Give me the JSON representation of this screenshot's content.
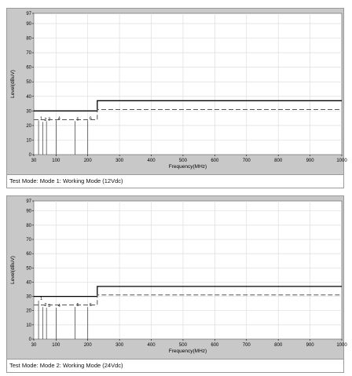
{
  "chart_data": [
    {
      "type": "line",
      "xlabel": "Frequency(MHz)",
      "ylabel": "Level(dBuV)",
      "xlim": [
        30,
        1000
      ],
      "ylim": [
        0,
        97
      ],
      "x_ticks": [
        30,
        100,
        200,
        300,
        400,
        500,
        600,
        700,
        800,
        900,
        1000
      ],
      "x_tick_labels": [
        "30",
        "100",
        "200",
        "300",
        "400",
        "500",
        "600",
        "700",
        "800",
        "900",
        "1000"
      ],
      "y_ticks": [
        0,
        10,
        20,
        30,
        40,
        50,
        60,
        70,
        80,
        90,
        97
      ],
      "y_tick_labels": [
        "0",
        "10",
        "20",
        "30",
        "40",
        "50",
        "60",
        "70",
        "80",
        "90",
        "97"
      ],
      "grid": true,
      "series": [
        {
          "style": "solid",
          "color": "#000000",
          "x": [
            30,
            230,
            230,
            1000
          ],
          "y": [
            30,
            30,
            37,
            37
          ]
        },
        {
          "style": "dashed",
          "color": "#555555",
          "x": [
            30,
            230,
            230,
            1000
          ],
          "y": [
            24,
            24,
            31,
            31
          ]
        }
      ],
      "markers": [
        {
          "label": "1",
          "x": 45,
          "y": 23.5
        },
        {
          "label": "2",
          "x": 58,
          "y": 22.5
        },
        {
          "label": "3",
          "x": 70,
          "y": 23
        },
        {
          "label": "4",
          "x": 101,
          "y": 23.5
        },
        {
          "label": "5",
          "x": 160,
          "y": 23
        },
        {
          "label": "6",
          "x": 200,
          "y": 23.5
        }
      ],
      "caption": "Test Mode: Mode 1: Working Mode (12Vdc)"
    },
    {
      "type": "line",
      "xlabel": "Frequency(MHz)",
      "ylabel": "Level(dBuV)",
      "xlim": [
        30,
        1000
      ],
      "ylim": [
        0,
        97
      ],
      "x_ticks": [
        30,
        100,
        200,
        300,
        400,
        500,
        600,
        700,
        800,
        900,
        1000
      ],
      "x_tick_labels": [
        "30",
        "100",
        "200",
        "300",
        "400",
        "500",
        "600",
        "700",
        "800",
        "900",
        "1000"
      ],
      "y_ticks": [
        0,
        10,
        20,
        30,
        40,
        50,
        60,
        70,
        80,
        90,
        97
      ],
      "y_tick_labels": [
        "0",
        "10",
        "20",
        "30",
        "40",
        "50",
        "60",
        "70",
        "80",
        "90",
        "97"
      ],
      "grid": true,
      "series": [
        {
          "style": "solid",
          "color": "#000000",
          "x": [
            30,
            230,
            230,
            1000
          ],
          "y": [
            30,
            30,
            37,
            37
          ]
        },
        {
          "style": "dashed",
          "color": "#555555",
          "x": [
            30,
            230,
            230,
            1000
          ],
          "y": [
            24,
            24,
            31,
            31
          ]
        }
      ],
      "markers": [
        {
          "label": "1",
          "x": 45,
          "y": 27
        },
        {
          "label": "2",
          "x": 58,
          "y": 22.5
        },
        {
          "label": "3",
          "x": 70,
          "y": 22
        },
        {
          "label": "4",
          "x": 101,
          "y": 22
        },
        {
          "label": "5",
          "x": 160,
          "y": 22.5
        },
        {
          "label": "6",
          "x": 200,
          "y": 22.5
        }
      ],
      "caption": "Test Mode: Mode 2: Working Mode (24Vdc)"
    }
  ]
}
